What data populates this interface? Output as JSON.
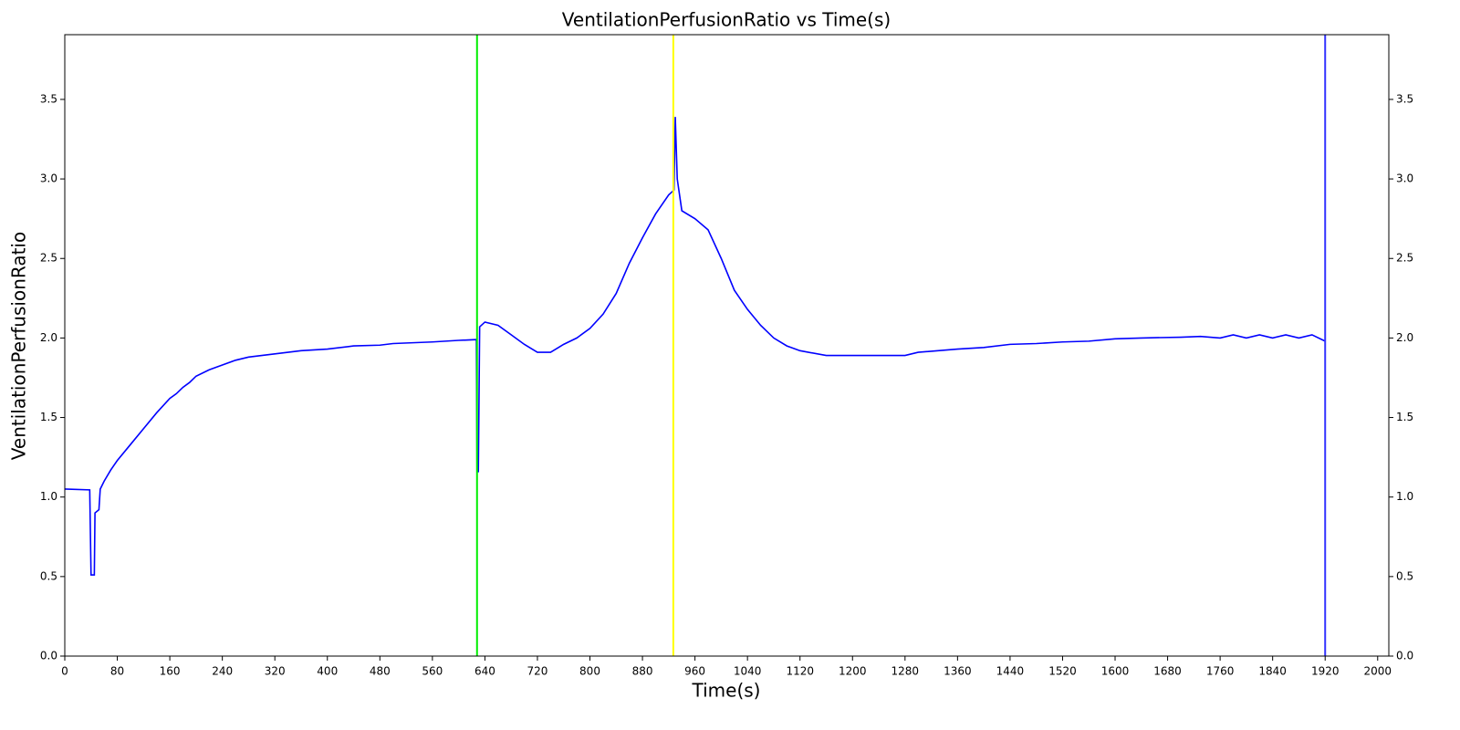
{
  "chart_data": {
    "type": "line",
    "title": "VentilationPerfusionRatio vs Time(s)",
    "xlabel": "Time(s)",
    "ylabel": "VentilationPerfusionRatio",
    "color": "#0000ff",
    "x": [
      0,
      38,
      40,
      45,
      46,
      52,
      54,
      60,
      70,
      80,
      100,
      120,
      140,
      160,
      170,
      180,
      190,
      200,
      220,
      240,
      260,
      280,
      320,
      360,
      400,
      440,
      480,
      500,
      560,
      600,
      627,
      628,
      630,
      632,
      640,
      660,
      680,
      700,
      720,
      740,
      760,
      780,
      800,
      820,
      840,
      860,
      880,
      900,
      920,
      928,
      930,
      933,
      940,
      960,
      980,
      1000,
      1020,
      1040,
      1060,
      1080,
      1100,
      1120,
      1160,
      1200,
      1280,
      1300,
      1360,
      1400,
      1440,
      1480,
      1520,
      1560,
      1600,
      1640,
      1700,
      1730,
      1760,
      1780,
      1800,
      1820,
      1840,
      1860,
      1880,
      1900,
      1920
    ],
    "values": [
      1.05,
      1.045,
      0.51,
      0.51,
      0.9,
      0.92,
      1.05,
      1.1,
      1.17,
      1.23,
      1.33,
      1.43,
      1.53,
      1.62,
      1.65,
      1.69,
      1.72,
      1.76,
      1.8,
      1.83,
      1.86,
      1.88,
      1.9,
      1.92,
      1.93,
      1.95,
      1.955,
      1.965,
      1.975,
      1.985,
      1.99,
      1.16,
      1.16,
      2.07,
      2.1,
      2.08,
      2.02,
      1.96,
      1.91,
      1.91,
      1.96,
      2.0,
      2.06,
      2.15,
      2.28,
      2.47,
      2.63,
      2.78,
      2.9,
      2.93,
      3.39,
      3.0,
      2.8,
      2.75,
      2.68,
      2.5,
      2.3,
      2.18,
      2.08,
      2.0,
      1.95,
      1.92,
      1.89,
      1.89,
      1.89,
      1.91,
      1.93,
      1.94,
      1.96,
      1.965,
      1.975,
      1.98,
      1.995,
      2.0,
      2.005,
      2.01,
      2.0,
      2.02,
      2.0,
      2.02,
      2.0,
      2.02,
      2.0,
      2.02,
      1.98
    ],
    "vlines": [
      {
        "x": 628,
        "color": "#00ee00"
      },
      {
        "x": 927,
        "color": "#ffff00"
      },
      {
        "x": 1920,
        "color": "#3333ff"
      }
    ],
    "xlim": [
      0,
      2017
    ],
    "xticks": [
      0,
      80,
      160,
      240,
      320,
      400,
      480,
      560,
      640,
      720,
      800,
      880,
      960,
      1040,
      1120,
      1200,
      1280,
      1360,
      1440,
      1520,
      1600,
      1680,
      1760,
      1840,
      1920,
      2000
    ],
    "ylim": [
      0,
      3.907
    ],
    "yticks": [
      {
        "value": 0,
        "label": "0.0"
      },
      0.5,
      {
        "value": 1,
        "label": "1.0"
      },
      1.5,
      {
        "value": 2,
        "label": "2.0"
      },
      2.5,
      {
        "value": 3,
        "label": "3.0"
      },
      3.5
    ],
    "y2lim": [
      0,
      3.907
    ],
    "y2ticks": [
      {
        "value": 0,
        "label": "0.0"
      },
      0.5,
      {
        "value": 1,
        "label": "1.0"
      },
      1.5,
      {
        "value": 2,
        "label": "2.0"
      },
      2.5,
      {
        "value": 3,
        "label": "3.0"
      },
      3.5
    ]
  }
}
